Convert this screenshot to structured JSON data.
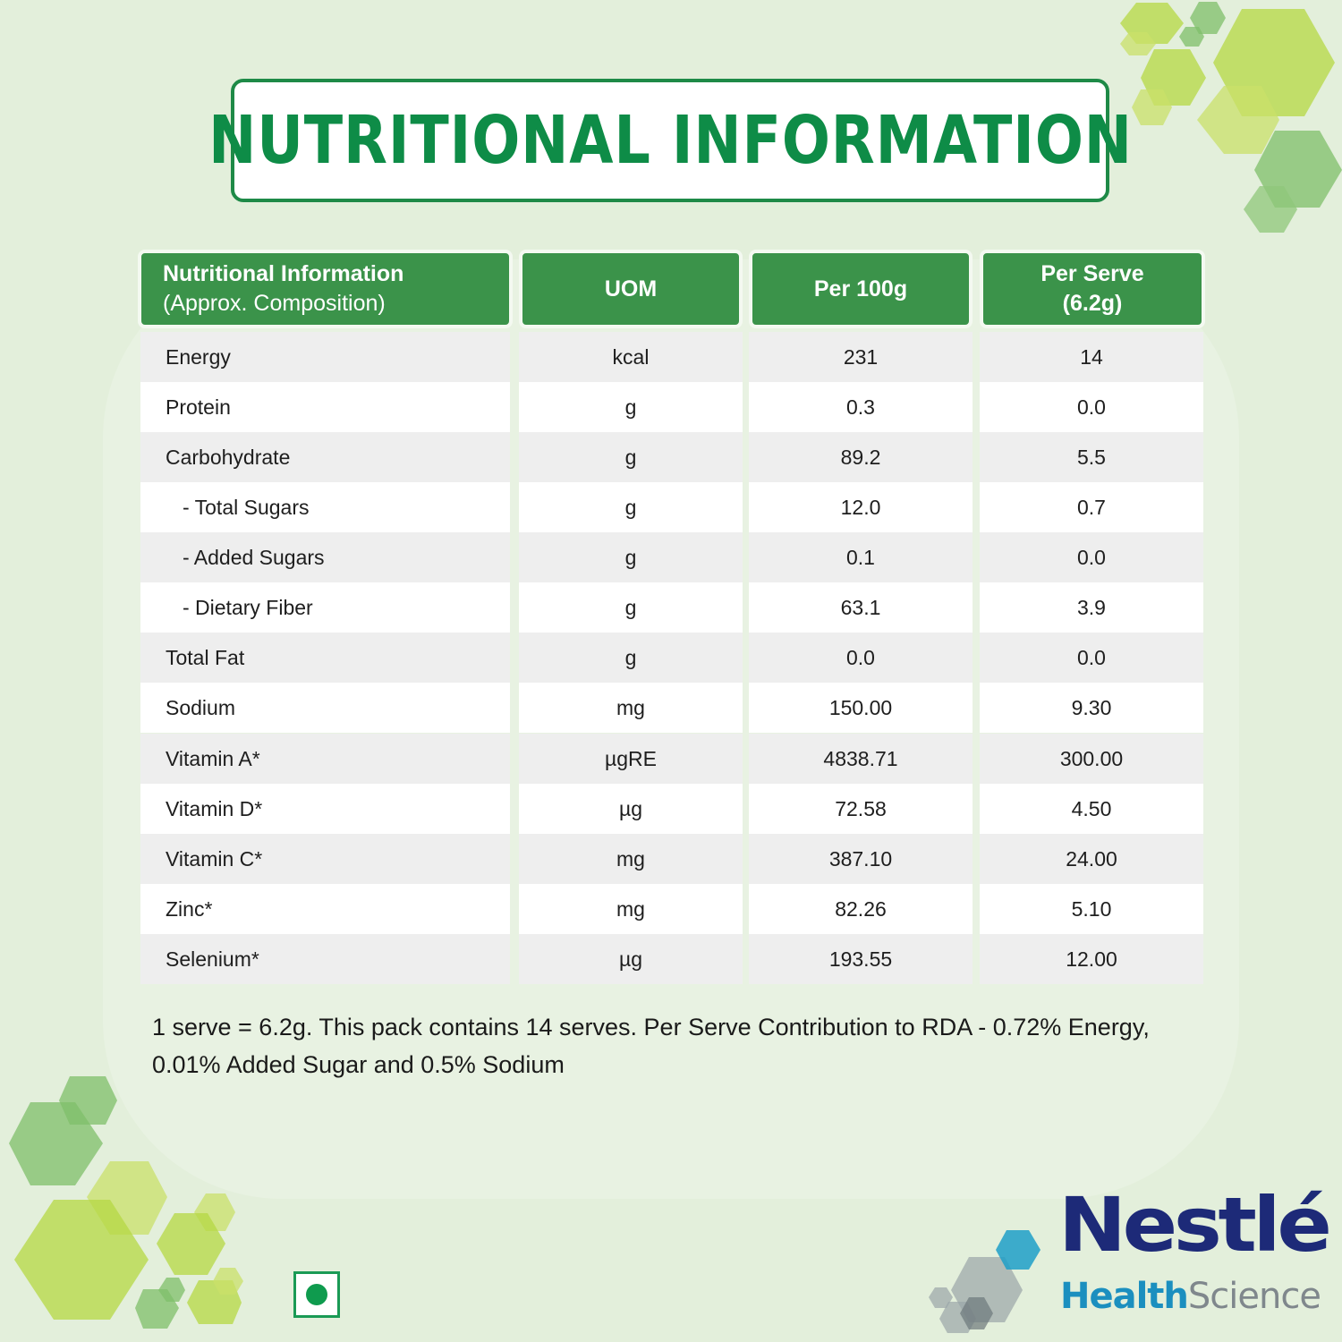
{
  "title": "NUTRITIONAL INFORMATION",
  "colors": {
    "accent_green": "#0e8c47",
    "header_green": "#3b934a",
    "background": "#e3efdb",
    "row_alt": "#eeeeee",
    "nestle_blue": "#1d2a78",
    "health_blue": "#1b8fbf",
    "science_gray": "#7f878c"
  },
  "table": {
    "headers": {
      "nutrient_line1": "Nutritional Information",
      "nutrient_line2": "(Approx. Composition)",
      "uom": "UOM",
      "per100": "Per 100g",
      "perserve_line1": "Per Serve",
      "perserve_line2": "(6.2g)"
    },
    "rows": [
      {
        "name": "Energy",
        "uom": "kcal",
        "per100": "231",
        "perserve": "14"
      },
      {
        "name": "Protein",
        "uom": "g",
        "per100": "0.3",
        "perserve": "0.0"
      },
      {
        "name": "Carbohydrate",
        "uom": "g",
        "per100": "89.2",
        "perserve": "5.5"
      },
      {
        "name": "- Total Sugars",
        "uom": "g",
        "per100": "12.0",
        "perserve": "0.7"
      },
      {
        "name": "- Added Sugars",
        "uom": "g",
        "per100": "0.1",
        "perserve": "0.0"
      },
      {
        "name": "- Dietary Fiber",
        "uom": "g",
        "per100": "63.1",
        "perserve": "3.9"
      },
      {
        "name": "Total Fat",
        "uom": "g",
        "per100": "0.0",
        "perserve": "0.0"
      },
      {
        "name": "Sodium",
        "uom": "mg",
        "per100": "150.00",
        "perserve": "9.30"
      },
      {
        "name": "Vitamin A*",
        "uom": "µgRE",
        "per100": "4838.71",
        "perserve": "300.00"
      },
      {
        "name": "Vitamin D*",
        "uom": "µg",
        "per100": "72.58",
        "perserve": "4.50"
      },
      {
        "name": "Vitamin C*",
        "uom": "mg",
        "per100": "387.10",
        "perserve": "24.00"
      },
      {
        "name": "Zinc*",
        "uom": "mg",
        "per100": "82.26",
        "perserve": "5.10"
      },
      {
        "name": "Selenium*",
        "uom": "µg",
        "per100": "193.55",
        "perserve": "12.00"
      }
    ]
  },
  "footnote": {
    "line1": "1 serve = 6.2g. This pack contains 14 serves. Per Serve Contribution to RDA - 0.72% Energy,",
    "line2": "0.01% Added Sugar and 0.5% Sodium"
  },
  "logo": {
    "brand": "Nestlé",
    "sub_health": "Health",
    "sub_science": "Science"
  },
  "icons": {
    "veg_mark": "vegetarian-mark-icon",
    "decor": "hexagon-cluster-icon"
  }
}
